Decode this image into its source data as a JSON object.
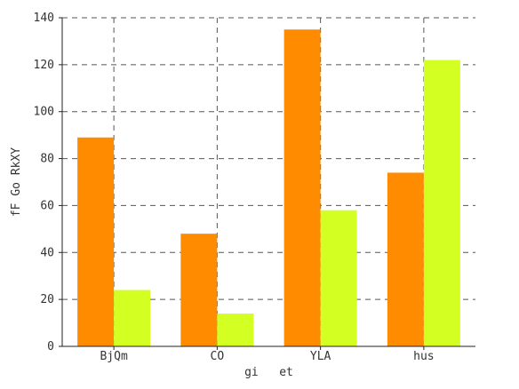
{
  "chart_data": {
    "type": "bar",
    "categories": [
      "BjQm",
      "CO",
      "YLA",
      "hus"
    ],
    "series": [
      {
        "values": [
          89,
          48,
          135,
          74
        ],
        "color": "#ff8c00"
      },
      {
        "values": [
          24,
          14,
          58,
          122
        ],
        "color": "#d4ff22"
      }
    ],
    "xlabel": "gi   et",
    "ylabel": "fF Go RkXY",
    "ylim": [
      0,
      140
    ],
    "yticks": [
      0,
      20,
      40,
      60,
      80,
      100,
      120,
      140
    ],
    "grid": true,
    "grid_style": "dashed"
  }
}
